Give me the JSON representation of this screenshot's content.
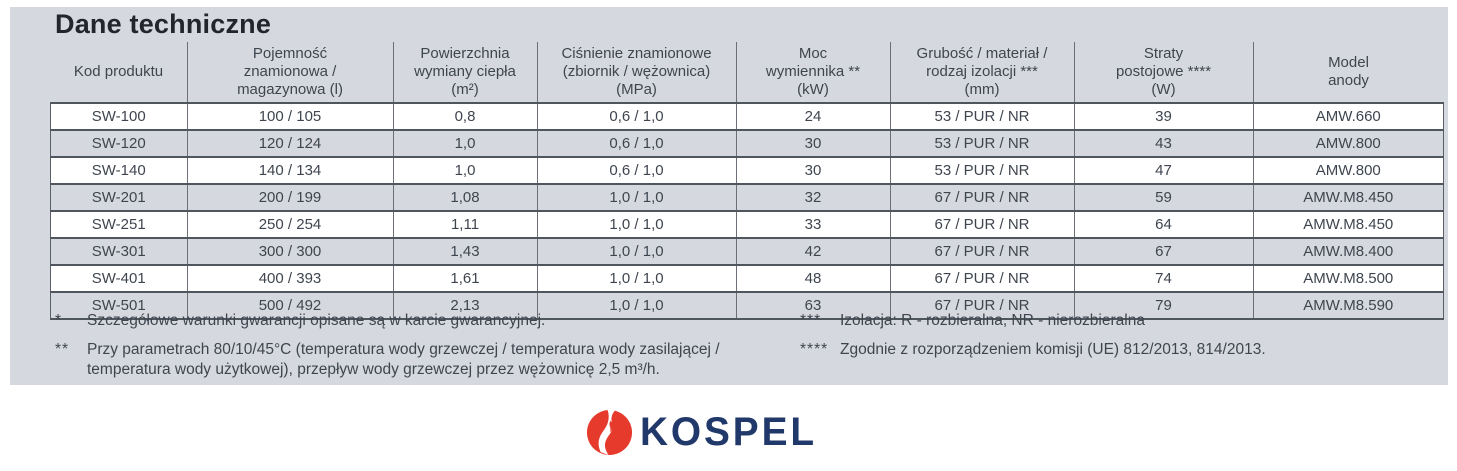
{
  "title": "Dane techniczne",
  "table": {
    "columns": [
      {
        "id": "kod-produktu",
        "lines": [
          "Kod produktu"
        ]
      },
      {
        "id": "pojemnosc",
        "lines": [
          "Pojemność",
          "znamionowa /",
          "magazynowa (l)"
        ]
      },
      {
        "id": "powierzchnia",
        "lines": [
          "Powierzchnia",
          "wymiany ciepła",
          "(m²)"
        ]
      },
      {
        "id": "cisnienie",
        "lines": [
          "Ciśnienie znamionowe",
          "(zbiornik / wężownica)",
          "(MPa)"
        ]
      },
      {
        "id": "moc",
        "lines": [
          "Moc",
          "wymiennika **",
          "(kW)"
        ]
      },
      {
        "id": "grubosc",
        "lines": [
          "Grubość / materiał /",
          "rodzaj izolacji ***",
          "(mm)"
        ]
      },
      {
        "id": "straty",
        "lines": [
          "Straty",
          "postojowe ****",
          "(W)"
        ]
      },
      {
        "id": "model-anody",
        "lines": [
          "Model",
          "anody"
        ]
      }
    ],
    "rows": [
      [
        "SW-100",
        "100 / 105",
        "0,8",
        "0,6 / 1,0",
        "24",
        "53 / PUR / NR",
        "39",
        "AMW.660"
      ],
      [
        "SW-120",
        "120 / 124",
        "1,0",
        "0,6 / 1,0",
        "30",
        "53 / PUR / NR",
        "43",
        "AMW.800"
      ],
      [
        "SW-140",
        "140 / 134",
        "1,0",
        "0,6 / 1,0",
        "30",
        "53 / PUR / NR",
        "47",
        "AMW.800"
      ],
      [
        "SW-201",
        "200 / 199",
        "1,08",
        "1,0 / 1,0",
        "32",
        "67 / PUR / NR",
        "59",
        "AMW.M8.450"
      ],
      [
        "SW-251",
        "250 / 254",
        "1,11",
        "1,0 / 1,0",
        "33",
        "67 / PUR / NR",
        "64",
        "AMW.M8.450"
      ],
      [
        "SW-301",
        "300 / 300",
        "1,43",
        "1,0 / 1,0",
        "42",
        "67 / PUR / NR",
        "67",
        "AMW.M8.400"
      ],
      [
        "SW-401",
        "400 / 393",
        "1,61",
        "1,0 / 1,0",
        "48",
        "67 / PUR / NR",
        "74",
        "AMW.M8.500"
      ],
      [
        "SW-501",
        "500 / 492",
        "2,13",
        "1,0 / 1,0",
        "63",
        "67 / PUR / NR",
        "79",
        "AMW.M8.590"
      ]
    ]
  },
  "footnotes": {
    "left": [
      {
        "marker": "*",
        "text": "Szczegółowe warunki gwarancji opisane są w karcie gwarancyjnej."
      },
      {
        "marker": "**",
        "text": "Przy parametrach 80/10/45°C (temperatura wody grzewczej / temperatura wody zasilającej / temperatura wody użytkowej), przepływ wody grzewczej przez wężownicę 2,5 m³/h."
      }
    ],
    "right": [
      {
        "marker": "***",
        "text": "Izolacja: R - rozbieralna,  NR - nierozbieralna"
      },
      {
        "marker": "****",
        "text": "Zgodnie z rozporządzeniem komisji (UE) 812/2013, 814/2013."
      }
    ]
  },
  "logo": {
    "text": "KOSPEL",
    "icon": "kospel-flame-icon",
    "brand_red": "#e63a2d",
    "brand_navy": "#20396a"
  },
  "colors": {
    "panel_bg": "#d5d9df",
    "row_white": "#ffffff",
    "text": "#3f454f",
    "border_dark": "#50565e",
    "border_mid": "#6b7078"
  }
}
